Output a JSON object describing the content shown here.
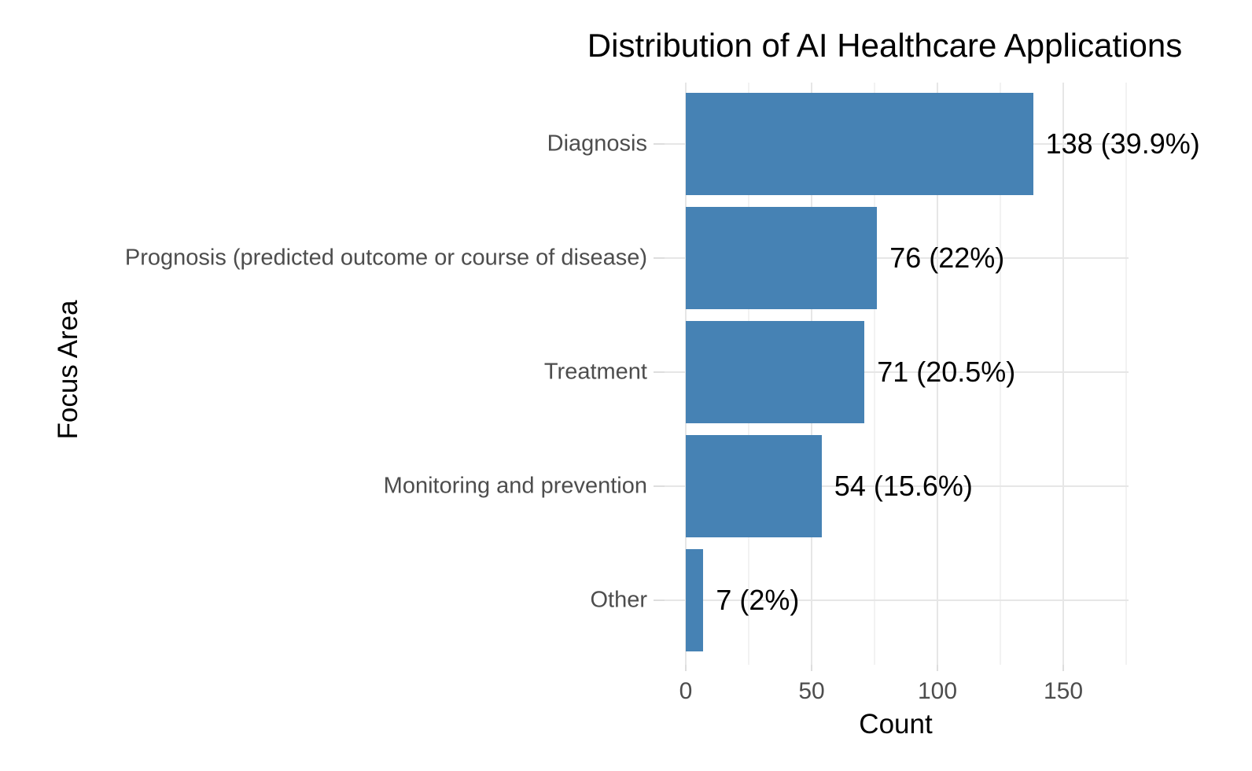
{
  "chart_data": {
    "type": "bar",
    "orientation": "horizontal",
    "title": "Distribution of AI Healthcare Applications",
    "xlabel": "Count",
    "ylabel": "Focus Area",
    "categories": [
      "Diagnosis",
      "Prognosis (predicted outcome or course of disease)",
      "Treatment",
      "Monitoring and prevention",
      "Other"
    ],
    "values": [
      138,
      76,
      71,
      54,
      7
    ],
    "value_labels": [
      "138 (39.9%)",
      "76 (22%)",
      "71 (20.5%)",
      "54 (15.6%)",
      "7 (2%)"
    ],
    "xlim": [
      0,
      176
    ],
    "x_major_ticks": [
      0,
      50,
      100,
      150
    ],
    "x_tick_labels": [
      "0",
      "50",
      "100",
      "150"
    ],
    "x_minor_ticks": [
      25,
      75,
      125,
      175
    ],
    "grid": true,
    "legend": false,
    "colors": {
      "bar": "#4682B4",
      "grid_major": "#E6E6E6",
      "grid_minor": "#F2F2F2",
      "tick_mark": "#DDDDDD",
      "tick_label": "#4D4D4D",
      "text": "#000000",
      "background": "#FFFFFF"
    }
  }
}
